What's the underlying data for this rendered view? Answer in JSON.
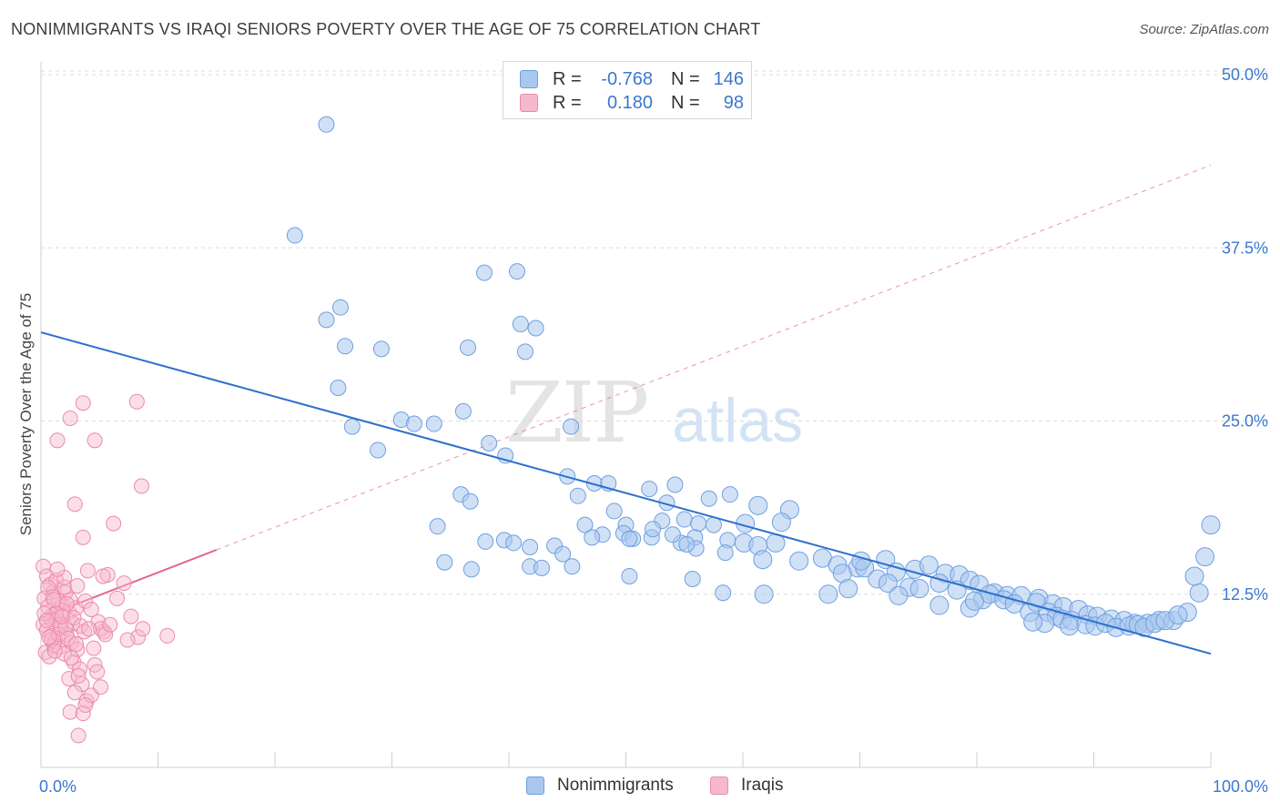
{
  "title": "NONIMMIGRANTS VS IRAQI SENIORS POVERTY OVER THE AGE OF 75 CORRELATION CHART",
  "source": "Source: ZipAtlas.com",
  "watermark": {
    "zip": "ZIP",
    "atlas": "atlas"
  },
  "legend": {
    "r_label": "R =",
    "n_label": "N =",
    "rows": [
      {
        "r": "-0.768",
        "n": "146"
      },
      {
        "r": "0.180",
        "n": "98"
      }
    ]
  },
  "colors": {
    "blue_fill": "#a9c8ee",
    "blue_stroke": "#6f9fe0",
    "blue_line": "#2d6fcc",
    "pink_fill": "#f6b9cc",
    "pink_stroke": "#ec8aaa",
    "pink_line": "#e8638f",
    "grid": "#dcdcdc",
    "axis_text": "#3b78d0"
  },
  "chart_data": {
    "type": "scatter",
    "title": "NONIMMIGRANTS VS IRAQI SENIORS POVERTY OVER THE AGE OF 75 CORRELATION CHART",
    "xlabel": "",
    "ylabel": "Seniors Poverty Over the Age of 75",
    "xlim": [
      0,
      100
    ],
    "ylim": [
      0,
      50
    ],
    "x_tick_labels": [
      "0.0%",
      "100.0%"
    ],
    "y_ticks": [
      12.5,
      25.0,
      37.5,
      50.0
    ],
    "y_tick_labels": [
      "12.5%",
      "25.0%",
      "37.5%",
      "50.0%"
    ],
    "grid": "horizontal dashed",
    "legend_placement": "top-center",
    "series": [
      {
        "name": "Nonimmigrants",
        "r": -0.768,
        "n": 146,
        "trend": {
          "x": [
            0,
            100
          ],
          "y": [
            31.4,
            8.2
          ]
        },
        "points": [
          [
            24.4,
            46.4
          ],
          [
            21.7,
            38.4
          ],
          [
            37.9,
            35.7
          ],
          [
            40.7,
            35.8
          ],
          [
            25.6,
            33.2
          ],
          [
            24.4,
            32.3
          ],
          [
            41.0,
            32.0
          ],
          [
            42.3,
            31.7
          ],
          [
            26.0,
            30.4
          ],
          [
            29.1,
            30.2
          ],
          [
            41.4,
            30.0
          ],
          [
            36.5,
            30.3
          ],
          [
            25.4,
            27.4
          ],
          [
            30.8,
            25.1
          ],
          [
            31.9,
            24.8
          ],
          [
            33.6,
            24.8
          ],
          [
            36.1,
            25.7
          ],
          [
            26.6,
            24.6
          ],
          [
            28.8,
            22.9
          ],
          [
            45.3,
            24.6
          ],
          [
            38.3,
            23.4
          ],
          [
            39.7,
            22.5
          ],
          [
            45.0,
            21.0
          ],
          [
            47.3,
            20.5
          ],
          [
            45.9,
            19.6
          ],
          [
            48.5,
            20.5
          ],
          [
            52.0,
            20.1
          ],
          [
            54.2,
            20.4
          ],
          [
            35.9,
            19.7
          ],
          [
            36.7,
            19.2
          ],
          [
            53.5,
            19.1
          ],
          [
            57.1,
            19.4
          ],
          [
            58.9,
            19.7
          ],
          [
            61.3,
            18.9
          ],
          [
            64.0,
            18.6
          ],
          [
            46.5,
            17.5
          ],
          [
            49.0,
            18.5
          ],
          [
            53.1,
            17.8
          ],
          [
            55.0,
            17.9
          ],
          [
            56.2,
            17.6
          ],
          [
            50.0,
            17.5
          ],
          [
            57.5,
            17.5
          ],
          [
            60.2,
            17.6
          ],
          [
            63.3,
            17.7
          ],
          [
            48.0,
            16.8
          ],
          [
            49.8,
            16.9
          ],
          [
            50.6,
            16.5
          ],
          [
            52.2,
            16.6
          ],
          [
            54.7,
            16.2
          ],
          [
            55.9,
            16.6
          ],
          [
            58.7,
            16.4
          ],
          [
            60.1,
            16.2
          ],
          [
            61.3,
            16.0
          ],
          [
            62.8,
            16.2
          ],
          [
            56.0,
            15.8
          ],
          [
            58.5,
            15.5
          ],
          [
            33.9,
            17.4
          ],
          [
            38.0,
            16.3
          ],
          [
            39.6,
            16.4
          ],
          [
            40.4,
            16.2
          ],
          [
            43.9,
            16.0
          ],
          [
            44.6,
            15.4
          ],
          [
            41.8,
            15.9
          ],
          [
            47.1,
            16.6
          ],
          [
            50.3,
            16.5
          ],
          [
            52.3,
            17.2
          ],
          [
            34.5,
            14.8
          ],
          [
            36.8,
            14.3
          ],
          [
            41.8,
            14.5
          ],
          [
            42.8,
            14.4
          ],
          [
            45.4,
            14.5
          ],
          [
            50.3,
            13.8
          ],
          [
            54.0,
            16.8
          ],
          [
            55.2,
            16.1
          ],
          [
            61.7,
            15.0
          ],
          [
            64.8,
            14.9
          ],
          [
            66.8,
            15.1
          ],
          [
            68.1,
            14.6
          ],
          [
            69.8,
            14.4
          ],
          [
            70.4,
            14.4
          ],
          [
            72.2,
            15.0
          ],
          [
            73.1,
            14.1
          ],
          [
            74.7,
            14.3
          ],
          [
            75.9,
            14.6
          ],
          [
            77.3,
            14.0
          ],
          [
            78.5,
            13.9
          ],
          [
            79.4,
            13.5
          ],
          [
            80.2,
            13.2
          ],
          [
            81.5,
            12.6
          ],
          [
            82.6,
            12.4
          ],
          [
            83.8,
            12.4
          ],
          [
            85.3,
            12.2
          ],
          [
            86.5,
            11.8
          ],
          [
            87.4,
            11.6
          ],
          [
            88.7,
            11.4
          ],
          [
            89.5,
            11.0
          ],
          [
            90.3,
            10.9
          ],
          [
            91.5,
            10.7
          ],
          [
            92.6,
            10.6
          ],
          [
            93.5,
            10.4
          ],
          [
            94.6,
            10.4
          ],
          [
            95.6,
            10.6
          ],
          [
            96.8,
            10.6
          ],
          [
            98.0,
            11.2
          ],
          [
            99.0,
            12.6
          ],
          [
            98.6,
            13.8
          ],
          [
            99.5,
            15.2
          ],
          [
            100.0,
            17.5
          ],
          [
            68.5,
            14.0
          ],
          [
            70.1,
            14.9
          ],
          [
            71.5,
            13.6
          ],
          [
            72.4,
            13.3
          ],
          [
            74.2,
            13.0
          ],
          [
            75.1,
            12.9
          ],
          [
            76.8,
            13.3
          ],
          [
            78.3,
            12.8
          ],
          [
            80.5,
            12.1
          ],
          [
            81.1,
            12.5
          ],
          [
            82.3,
            12.1
          ],
          [
            83.2,
            11.8
          ],
          [
            84.5,
            11.2
          ],
          [
            85.1,
            11.9
          ],
          [
            86.1,
            11.2
          ],
          [
            86.8,
            10.9
          ],
          [
            87.3,
            10.7
          ],
          [
            88.1,
            10.6
          ],
          [
            89.3,
            10.3
          ],
          [
            90.1,
            10.2
          ],
          [
            91.0,
            10.4
          ],
          [
            91.9,
            10.1
          ],
          [
            93.0,
            10.2
          ],
          [
            93.8,
            10.3
          ],
          [
            94.3,
            10.1
          ],
          [
            95.2,
            10.4
          ],
          [
            96.1,
            10.6
          ],
          [
            97.2,
            11.0
          ],
          [
            85.8,
            10.4
          ],
          [
            87.9,
            10.2
          ],
          [
            79.4,
            11.5
          ],
          [
            76.8,
            11.7
          ],
          [
            73.3,
            12.4
          ],
          [
            69.0,
            12.9
          ],
          [
            67.3,
            12.5
          ],
          [
            61.8,
            12.5
          ],
          [
            58.3,
            12.6
          ],
          [
            55.7,
            13.6
          ],
          [
            79.8,
            12.0
          ],
          [
            84.8,
            10.5
          ]
        ]
      },
      {
        "name": "Iraqis",
        "r": 0.18,
        "n": 98,
        "trend": {
          "x": [
            0,
            15
          ],
          "y": [
            10.8,
            15.7
          ]
        },
        "points": [
          [
            0.2,
            14.5
          ],
          [
            0.5,
            13.8
          ],
          [
            0.8,
            13.2
          ],
          [
            1.1,
            12.7
          ],
          [
            0.3,
            12.2
          ],
          [
            0.6,
            11.6
          ],
          [
            1.0,
            11.0
          ],
          [
            1.4,
            10.6
          ],
          [
            0.2,
            10.3
          ],
          [
            0.5,
            9.9
          ],
          [
            0.9,
            9.5
          ],
          [
            1.2,
            9.1
          ],
          [
            1.6,
            8.7
          ],
          [
            0.4,
            8.3
          ],
          [
            0.7,
            8.0
          ],
          [
            1.8,
            11.8
          ],
          [
            2.1,
            12.6
          ],
          [
            2.4,
            11.2
          ],
          [
            2.7,
            10.4
          ],
          [
            1.3,
            13.5
          ],
          [
            2.0,
            13.0
          ],
          [
            2.5,
            12.1
          ],
          [
            3.0,
            11.5
          ],
          [
            1.5,
            12.0
          ],
          [
            0.9,
            10.7
          ],
          [
            1.7,
            10.1
          ],
          [
            2.2,
            9.6
          ],
          [
            2.6,
            9.0
          ],
          [
            3.1,
            8.5
          ],
          [
            1.1,
            8.8
          ],
          [
            2.0,
            8.2
          ],
          [
            2.8,
            7.6
          ],
          [
            3.3,
            7.1
          ],
          [
            2.4,
            6.4
          ],
          [
            3.5,
            6.0
          ],
          [
            2.9,
            5.4
          ],
          [
            3.9,
            4.8
          ],
          [
            2.5,
            4.0
          ],
          [
            3.6,
            3.9
          ],
          [
            3.2,
            2.3
          ],
          [
            1.4,
            23.6
          ],
          [
            2.5,
            25.2
          ],
          [
            3.6,
            26.3
          ],
          [
            4.6,
            23.6
          ],
          [
            8.2,
            26.4
          ],
          [
            8.6,
            20.3
          ],
          [
            2.9,
            19.0
          ],
          [
            3.6,
            16.6
          ],
          [
            6.2,
            17.6
          ],
          [
            4.0,
            14.2
          ],
          [
            3.8,
            12.0
          ],
          [
            4.3,
            11.4
          ],
          [
            4.9,
            10.5
          ],
          [
            5.4,
            9.8
          ],
          [
            5.7,
            13.9
          ],
          [
            7.1,
            13.3
          ],
          [
            7.7,
            10.9
          ],
          [
            8.3,
            9.4
          ],
          [
            8.7,
            10.0
          ],
          [
            10.8,
            9.5
          ],
          [
            4.5,
            8.6
          ],
          [
            4.6,
            7.4
          ],
          [
            5.1,
            10.0
          ],
          [
            5.5,
            9.6
          ],
          [
            1.9,
            11.3
          ],
          [
            0.6,
            13.0
          ],
          [
            1.0,
            12.3
          ],
          [
            1.3,
            11.1
          ],
          [
            1.6,
            10.3
          ],
          [
            2.2,
            11.8
          ],
          [
            0.3,
            11.1
          ],
          [
            0.9,
            9.2
          ],
          [
            1.5,
            9.6
          ],
          [
            2.1,
            10.1
          ],
          [
            2.8,
            10.8
          ],
          [
            3.4,
            10.2
          ],
          [
            0.5,
            10.6
          ],
          [
            1.1,
            12.1
          ],
          [
            1.8,
            10.9
          ],
          [
            2.3,
            9.3
          ],
          [
            3.0,
            8.9
          ],
          [
            3.7,
            9.8
          ],
          [
            4.1,
            10.0
          ],
          [
            5.3,
            13.8
          ],
          [
            0.7,
            9.4
          ],
          [
            1.2,
            8.4
          ],
          [
            2.6,
            7.9
          ],
          [
            3.2,
            6.6
          ],
          [
            4.3,
            5.2
          ],
          [
            3.8,
            4.5
          ],
          [
            4.8,
            6.9
          ],
          [
            5.1,
            5.8
          ],
          [
            5.9,
            10.3
          ],
          [
            6.5,
            12.2
          ],
          [
            7.4,
            9.2
          ],
          [
            2.0,
            13.7
          ],
          [
            1.4,
            14.3
          ],
          [
            3.1,
            13.1
          ]
        ]
      }
    ]
  },
  "bottom_legend": [
    "Nonimmigrants",
    "Iraqis"
  ]
}
